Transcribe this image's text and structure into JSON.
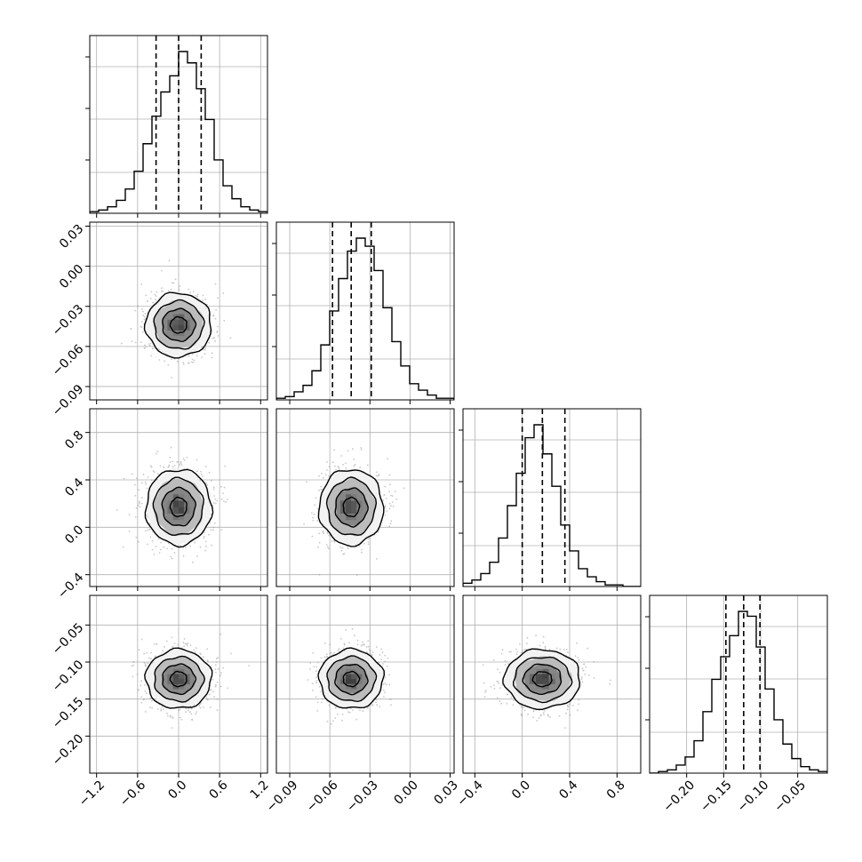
{
  "chart_data": {
    "type": "corner",
    "parameters": [
      {
        "range": [
          -1.3,
          1.3
        ],
        "ticks": [
          -1.2,
          -0.6,
          0.0,
          0.6,
          1.2
        ],
        "tick_labels": [
          "−1.2",
          "−0.6",
          "0.0",
          "0.6",
          "1.2"
        ],
        "mean": 0.0,
        "sigma": 0.24,
        "quantiles": [
          -0.33,
          0.0,
          0.33
        ]
      },
      {
        "range": [
          -0.1,
          0.033
        ],
        "ticks": [
          -0.09,
          -0.06,
          -0.03,
          0.0,
          0.03
        ],
        "tick_labels": [
          "−0.09",
          "−0.06",
          "−0.03",
          "0.00",
          "0.03"
        ],
        "mean": -0.044,
        "sigma": 0.012,
        "quantiles": [
          -0.058,
          -0.044,
          -0.029
        ]
      },
      {
        "range": [
          -0.5,
          1.0
        ],
        "ticks": [
          -0.4,
          0.0,
          0.4,
          0.8
        ],
        "tick_labels": [
          "−0.4",
          "0.0",
          "0.4",
          "0.8"
        ],
        "mean": 0.17,
        "sigma": 0.16,
        "quantiles": [
          0.0,
          0.17,
          0.36
        ]
      },
      {
        "range": [
          -0.25,
          -0.01
        ],
        "ticks": [
          -0.2,
          -0.15,
          -0.1,
          -0.05
        ],
        "tick_labels": [
          "−0.20",
          "−0.15",
          "−0.10",
          "−0.05"
        ],
        "mean": -0.123,
        "sigma": 0.02,
        "quantiles": [
          -0.147,
          -0.123,
          -0.101
        ]
      }
    ],
    "histograms": [
      {
        "param": 0,
        "bins": 20,
        "counts": [
          0.01,
          0.02,
          0.04,
          0.08,
          0.15,
          0.26,
          0.43,
          0.6,
          0.75,
          0.85,
          1.0,
          0.93,
          0.77,
          0.58,
          0.33,
          0.17,
          0.09,
          0.04,
          0.02,
          0.01
        ]
      },
      {
        "param": 1,
        "bins": 20,
        "counts": [
          0.01,
          0.02,
          0.05,
          0.09,
          0.18,
          0.34,
          0.55,
          0.75,
          0.92,
          1.0,
          0.95,
          0.8,
          0.57,
          0.36,
          0.21,
          0.1,
          0.06,
          0.03,
          0.01,
          0.01
        ]
      },
      {
        "param": 2,
        "bins": 20,
        "counts": [
          0.02,
          0.04,
          0.08,
          0.15,
          0.3,
          0.5,
          0.7,
          0.92,
          1.0,
          0.82,
          0.62,
          0.38,
          0.22,
          0.11,
          0.06,
          0.03,
          0.01,
          0.01,
          0.0,
          0.0
        ]
      },
      {
        "param": 3,
        "bins": 20,
        "counts": [
          0.0,
          0.01,
          0.02,
          0.05,
          0.1,
          0.2,
          0.38,
          0.58,
          0.72,
          0.85,
          1.0,
          0.97,
          0.78,
          0.52,
          0.33,
          0.18,
          0.09,
          0.04,
          0.02,
          0.01
        ]
      }
    ],
    "contour_levels_sigma": [
      0.5,
      1.0,
      1.5,
      2.0
    ],
    "grid": true,
    "colors": {
      "line": "#000000",
      "grid": "#b0b0b0",
      "scatter": "#9a9a9a",
      "density_light": "#f2f2f2",
      "density_dark": "#1a1a1a"
    }
  }
}
